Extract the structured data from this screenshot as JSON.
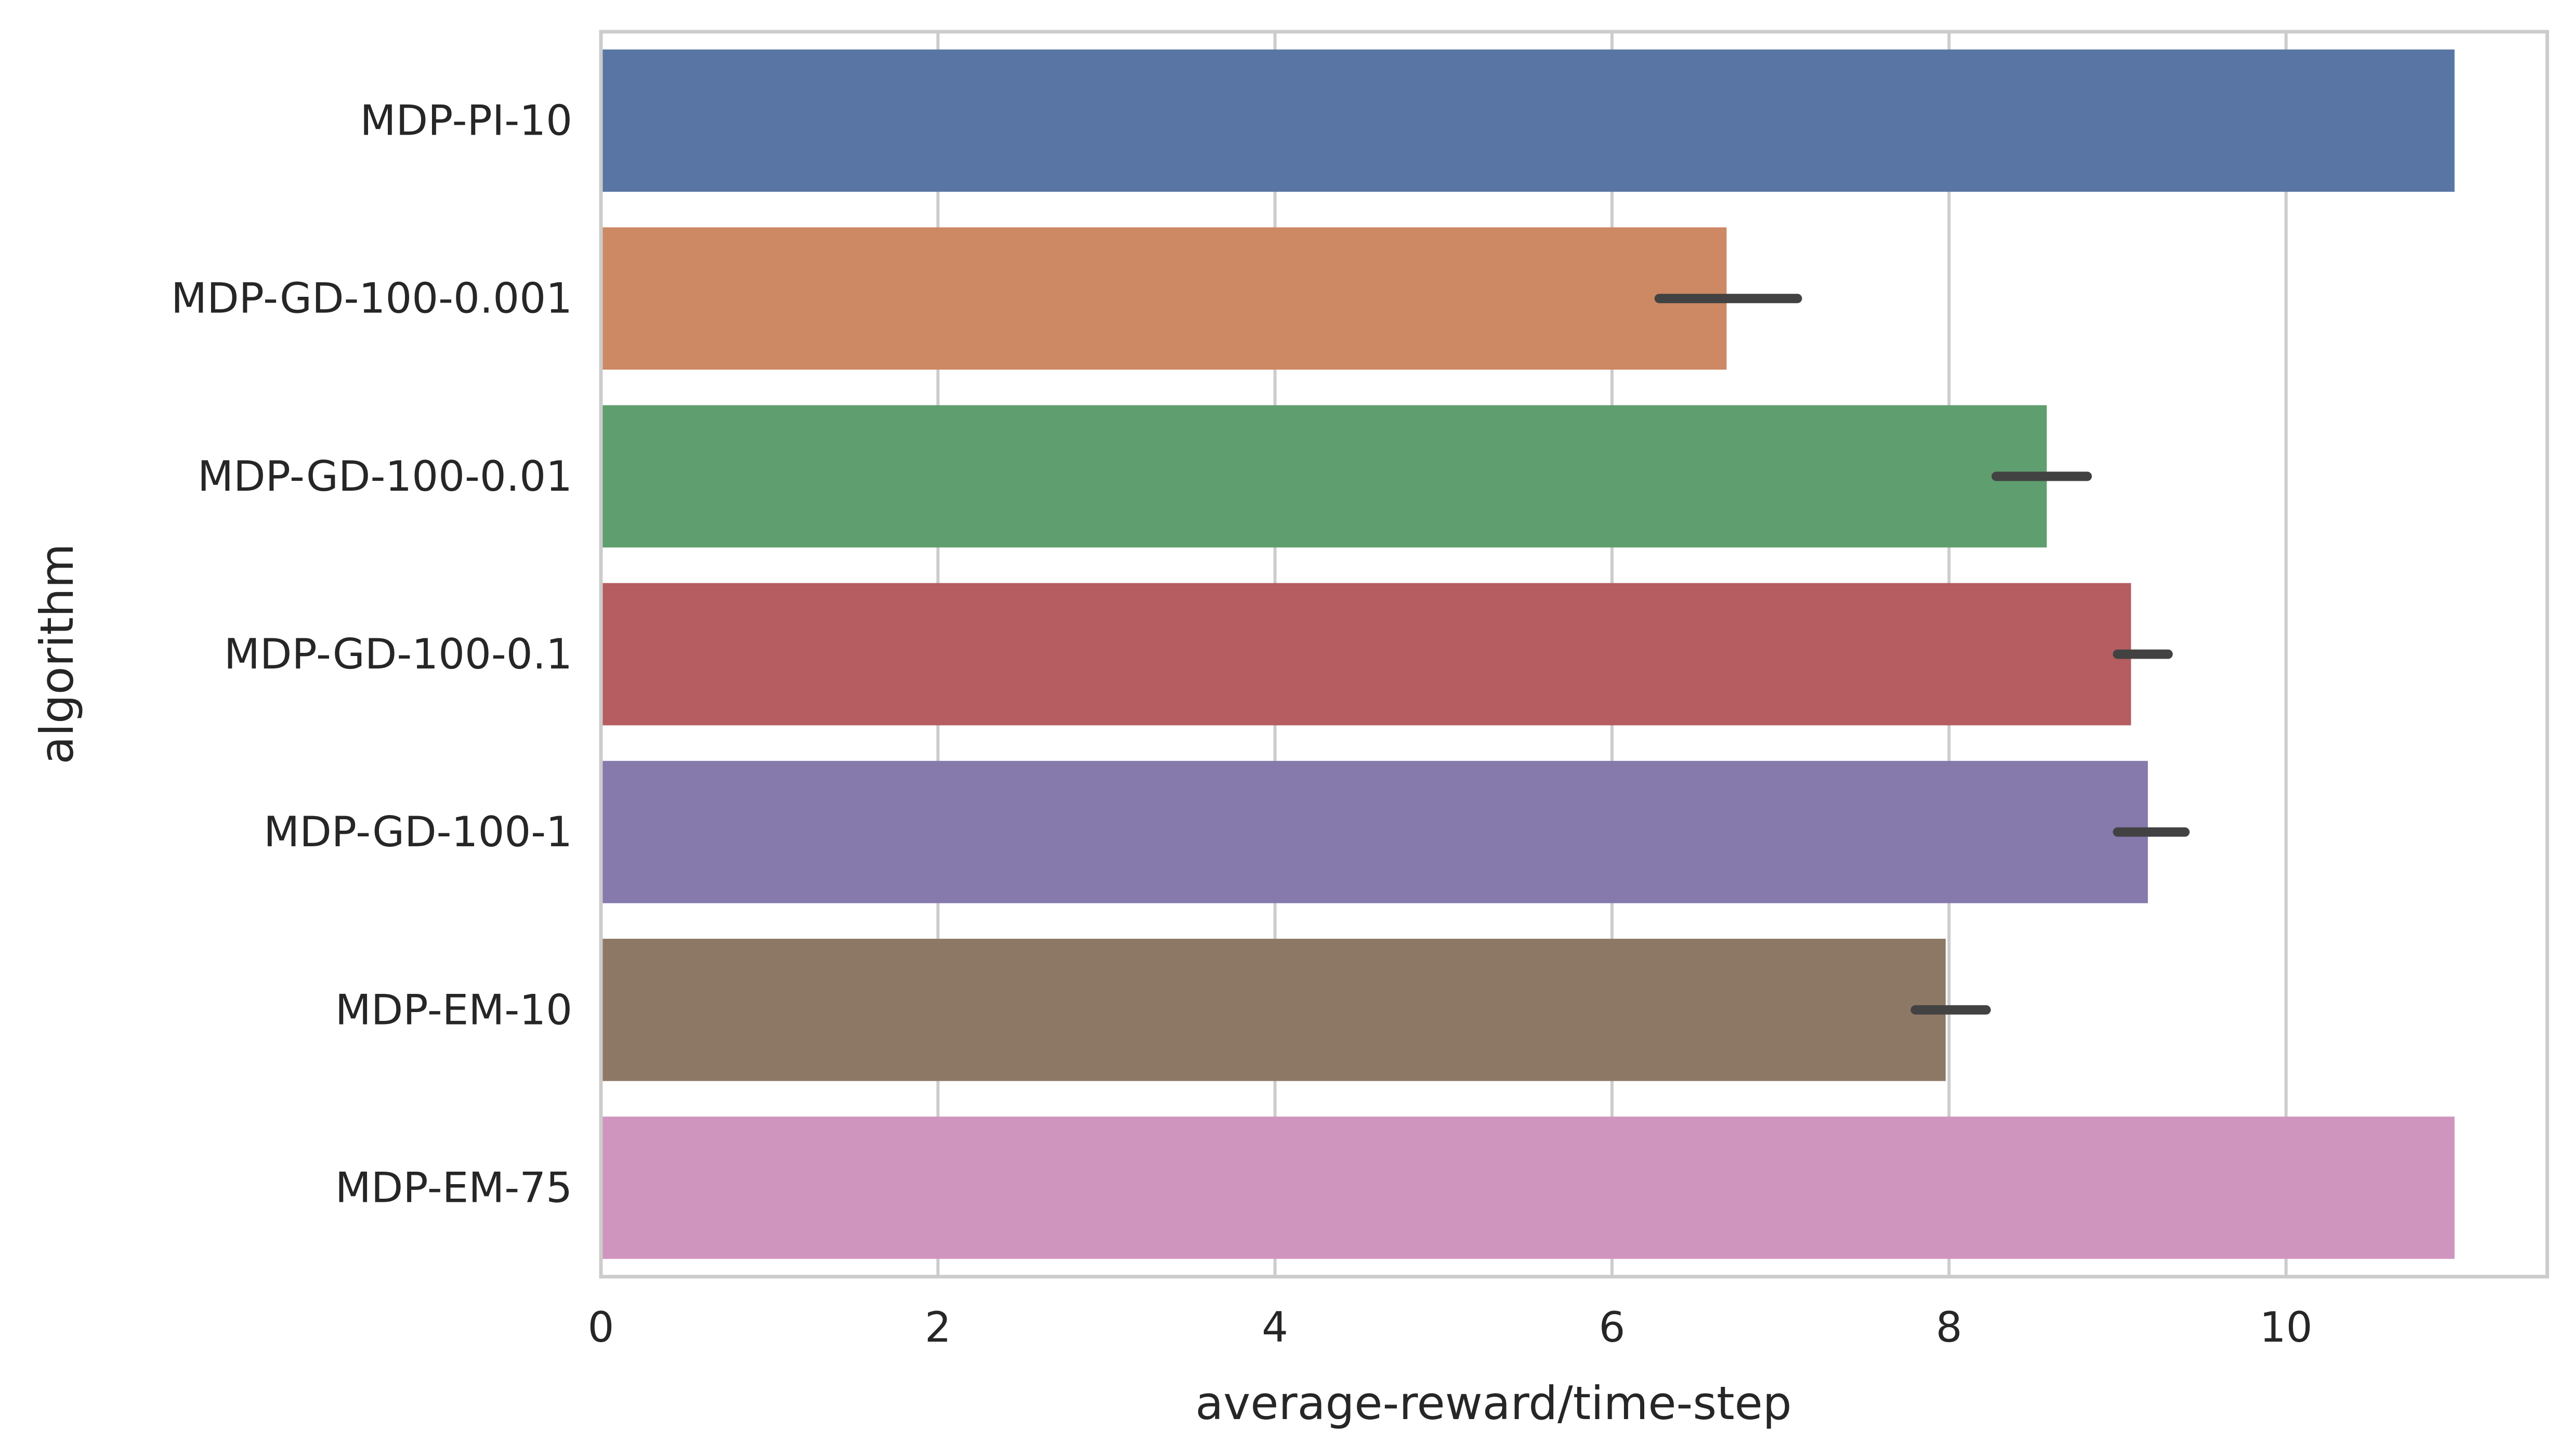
{
  "chart_data": {
    "type": "bar",
    "orientation": "horizontal",
    "title": "",
    "xlabel": "average-reward/time-step",
    "ylabel": "algorithm",
    "xlim": [
      0,
      11.55
    ],
    "xticks": [
      0,
      2,
      4,
      6,
      8,
      10
    ],
    "grid": "vertical",
    "legend": "none",
    "categories": [
      "MDP-PI-10",
      "MDP-GD-100-0.001",
      "MDP-GD-100-0.01",
      "MDP-GD-100-0.1",
      "MDP-GD-100-1",
      "MDP-EM-10",
      "MDP-EM-75"
    ],
    "values": [
      11.0,
      6.68,
      8.58,
      9.08,
      9.18,
      7.98,
      11.0
    ],
    "error_bars": [
      null,
      [
        6.28,
        7.1
      ],
      [
        8.28,
        8.82
      ],
      [
        9.0,
        9.3
      ],
      [
        9.0,
        9.4
      ],
      [
        7.8,
        8.22
      ],
      null
    ],
    "colors": [
      "#5875a4",
      "#cc8963",
      "#5f9e6e",
      "#b55d60",
      "#857aab",
      "#8d7866",
      "#d095bf"
    ],
    "error_color": "#424242",
    "axis_color": "#cccccc",
    "grid_color": "#cccccc"
  }
}
